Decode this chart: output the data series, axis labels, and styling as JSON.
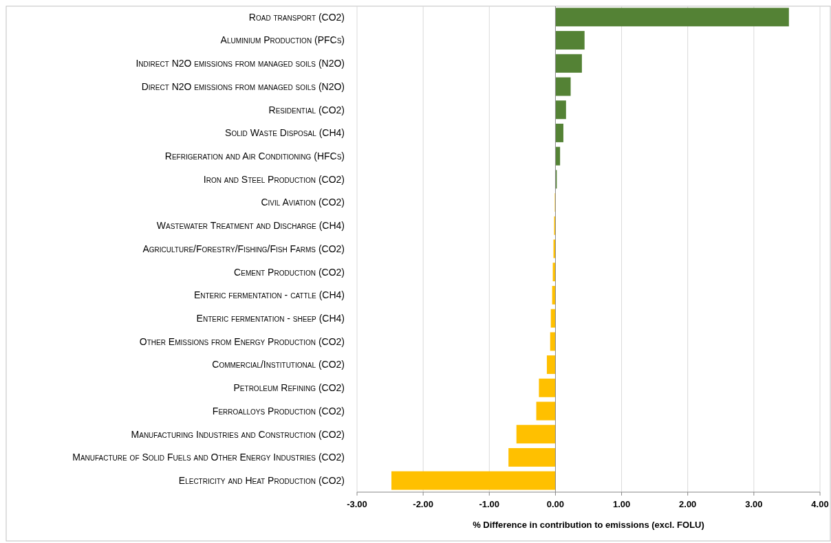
{
  "chart_data": {
    "type": "bar",
    "orientation": "horizontal",
    "xlabel": "% Difference in contribution to emissions (excl. FOLU)",
    "categories": [
      "Road transport (CO2)",
      "Aluminium Production (PFCs)",
      "Indirect N2O emissions from managed soils (N2O)",
      "Direct N2O emissions from managed soils (N2O)",
      "Residential (CO2)",
      "Solid Waste Disposal (CH4)",
      "Refrigeration and Air Conditioning (HFCs)",
      "Iron and Steel Production (CO2)",
      "Civil Aviation (CO2)",
      "Wastewater Treatment and Discharge (CH4)",
      "Agriculture/Forestry/Fishing/Fish Farms (CO2)",
      "Cement Production (CO2)",
      "Enteric fermentation - cattle (CH4)",
      "Enteric fermentation - sheep (CH4)",
      "Other Emissions from Energy Production (CO2)",
      "Commercial/Institutional (CO2)",
      "Petroleum Refining (CO2)",
      "Ferroalloys Production (CO2)",
      "Manufacturing Industries and Construction (CO2)",
      "Manufacture of Solid Fuels and Other Energy Industries (CO2)",
      "Electricity and Heat Production (CO2)"
    ],
    "values": [
      3.53,
      0.44,
      0.4,
      0.23,
      0.16,
      0.12,
      0.07,
      0.02,
      -0.01,
      -0.02,
      -0.03,
      -0.04,
      -0.05,
      -0.07,
      -0.08,
      -0.13,
      -0.25,
      -0.29,
      -0.59,
      -0.71,
      -2.48
    ],
    "colors": [
      "#548235",
      "#548235",
      "#548235",
      "#548235",
      "#548235",
      "#548235",
      "#548235",
      "#548235",
      "#ffc000",
      "#ffc000",
      "#ffc000",
      "#ffc000",
      "#ffc000",
      "#ffc000",
      "#ffc000",
      "#ffc000",
      "#ffc000",
      "#ffc000",
      "#ffc000",
      "#ffc000",
      "#ffc000"
    ],
    "xlim": [
      -3,
      4
    ],
    "xticks": [
      {
        "value": -3,
        "label": "-3.00"
      },
      {
        "value": -2,
        "label": "-2.00"
      },
      {
        "value": -1,
        "label": "-1.00"
      },
      {
        "value": 0,
        "label": "0.00"
      },
      {
        "value": 1,
        "label": "1.00"
      },
      {
        "value": 2,
        "label": "2.00"
      },
      {
        "value": 3,
        "label": "3.00"
      },
      {
        "value": 4,
        "label": "4.00"
      }
    ],
    "grid": "x"
  }
}
